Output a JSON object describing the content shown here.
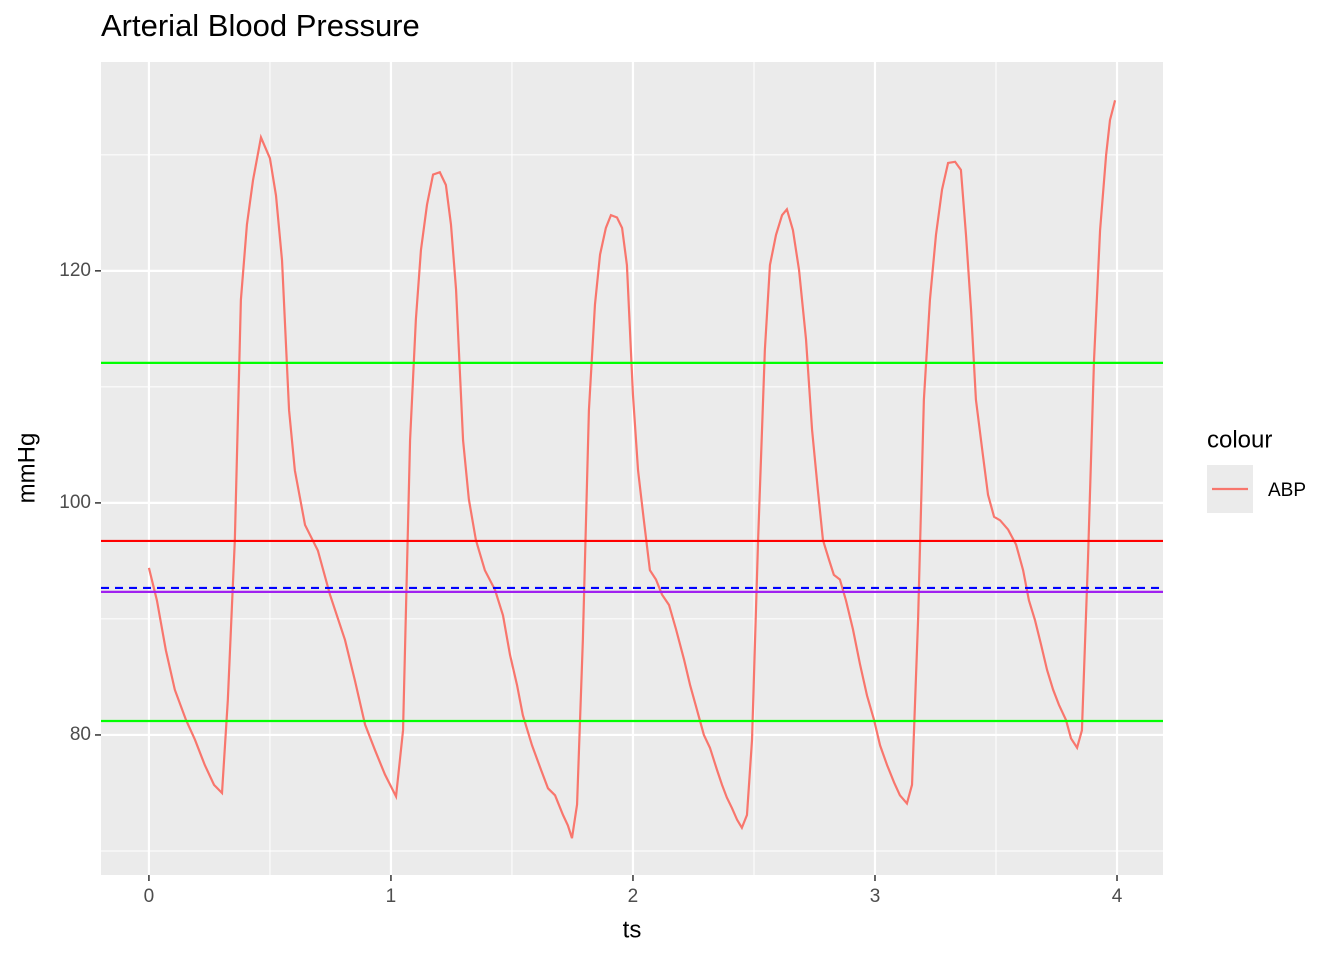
{
  "chart_data": {
    "type": "line",
    "title": "Arterial Blood Pressure",
    "x_label": "ts",
    "y_label": "mmHg",
    "legend_title": "colour",
    "x": [
      0,
      0.033,
      0.07,
      0.107,
      0.153,
      0.19,
      0.231,
      0.269,
      0.302,
      0.326,
      0.355,
      0.38,
      0.405,
      0.43,
      0.463,
      0.5,
      0.525,
      0.55,
      0.579,
      0.603,
      0.645,
      0.698,
      0.748,
      0.81,
      0.851,
      0.893,
      0.934,
      0.975,
      1.021,
      1.05,
      1.079,
      1.103,
      1.124,
      1.149,
      1.174,
      1.202,
      1.227,
      1.248,
      1.269,
      1.298,
      1.322,
      1.351,
      1.388,
      1.43,
      1.463,
      1.492,
      1.521,
      1.545,
      1.583,
      1.62,
      1.649,
      1.678,
      1.711,
      1.731,
      1.748,
      1.769,
      1.793,
      1.818,
      1.843,
      1.864,
      1.888,
      1.909,
      1.934,
      1.955,
      1.975,
      2.0,
      2.021,
      2.045,
      2.07,
      2.095,
      2.12,
      2.149,
      2.178,
      2.211,
      2.236,
      2.264,
      2.293,
      2.318,
      2.347,
      2.368,
      2.388,
      2.409,
      2.43,
      2.45,
      2.471,
      2.492,
      2.517,
      2.545,
      2.566,
      2.591,
      2.616,
      2.636,
      2.661,
      2.686,
      2.715,
      2.74,
      2.764,
      2.785,
      2.81,
      2.83,
      2.855,
      2.88,
      2.909,
      2.938,
      2.967,
      2.996,
      3.021,
      3.05,
      3.079,
      3.103,
      3.132,
      3.153,
      3.178,
      3.202,
      3.227,
      3.252,
      3.277,
      3.302,
      3.331,
      3.355,
      3.376,
      3.397,
      3.417,
      3.446,
      3.467,
      3.492,
      3.517,
      3.55,
      3.583,
      3.612,
      3.636,
      3.661,
      3.686,
      3.711,
      3.736,
      3.76,
      3.789,
      3.81,
      3.835,
      3.855,
      3.88,
      3.905,
      3.93,
      3.955,
      3.971,
      3.992
    ],
    "series": [
      {
        "name": "ABP",
        "color": "#f8766d",
        "values": [
          94.4,
          91.6,
          87.3,
          83.9,
          81.3,
          79.6,
          77.4,
          75.7,
          75.0,
          83.0,
          96.8,
          117.5,
          124,
          127.8,
          131.5,
          129.7,
          126.5,
          120.9,
          108,
          102.8,
          98.1,
          95.9,
          92.1,
          88.2,
          84.7,
          80.9,
          78.7,
          76.6,
          74.7,
          80.4,
          105.4,
          115.8,
          121.8,
          125.7,
          128.3,
          128.5,
          127.4,
          124,
          118.4,
          105.4,
          100.3,
          96.8,
          94.2,
          92.5,
          90.3,
          86.9,
          84.3,
          81.7,
          79.1,
          77,
          75.4,
          74.8,
          73.1,
          72.2,
          71.1,
          74,
          88.2,
          108,
          117.1,
          121.4,
          123.7,
          124.8,
          124.6,
          123.7,
          120.5,
          109.3,
          102.8,
          98.5,
          94.2,
          93.4,
          92.1,
          91.2,
          89.1,
          86.5,
          84.3,
          82.2,
          80,
          78.9,
          77,
          75.7,
          74.6,
          73.7,
          72.7,
          72,
          73.1,
          79.6,
          96.8,
          113.2,
          120.5,
          123.1,
          124.8,
          125.3,
          123.5,
          120.1,
          114.1,
          106.3,
          101.1,
          96.8,
          95.1,
          93.8,
          93.4,
          91.6,
          89.1,
          86.1,
          83.4,
          81.3,
          79.1,
          77.4,
          75.9,
          74.8,
          74.1,
          75.7,
          89.9,
          108.9,
          117.5,
          123.1,
          127,
          129.3,
          129.4,
          128.7,
          123.1,
          116.6,
          108.9,
          104.1,
          100.7,
          98.8,
          98.5,
          97.7,
          96.4,
          94.2,
          91.6,
          89.9,
          87.8,
          85.6,
          83.9,
          82.6,
          81.3,
          79.7,
          78.9,
          80.4,
          95.1,
          112.3,
          123.5,
          130,
          133,
          134.7
        ]
      }
    ],
    "hlines": [
      {
        "value": 112.07,
        "color": "#00ff00",
        "linetype": "solid"
      },
      {
        "value": 96.72,
        "color": "#ff0000",
        "linetype": "solid"
      },
      {
        "value": 92.67,
        "color": "#0000ff",
        "linetype": "dashed"
      },
      {
        "value": 92.33,
        "color": "#a020f0",
        "linetype": "solid"
      },
      {
        "value": 81.2,
        "color": "#00ff00",
        "linetype": "solid"
      }
    ],
    "xlim": [
      -0.198,
      4.19
    ],
    "xticks": [
      0,
      1,
      2,
      3,
      4
    ],
    "ylim": [
      67.93,
      138.0
    ],
    "yticks": [
      80,
      100,
      120
    ],
    "grid": true
  }
}
